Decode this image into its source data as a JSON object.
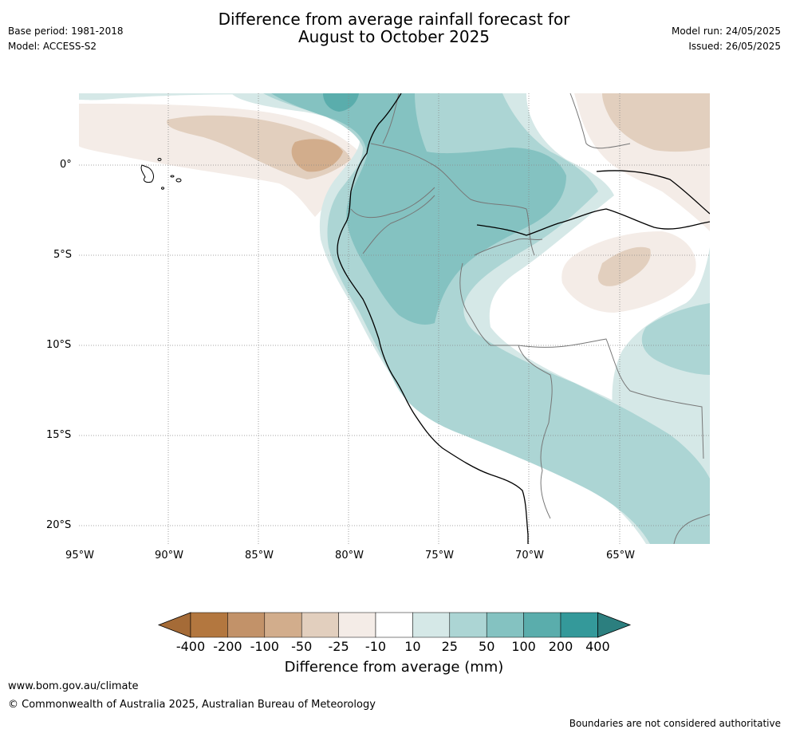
{
  "header": {
    "title_line1": "Difference from average rainfall forecast for",
    "title_line2": "August to October 2025",
    "base_period": "Base period: 1981-2018",
    "model": "Model: ACCESS-S2",
    "model_run": "Model run: 24/05/2025",
    "issued": "Issued: 26/05/2025"
  },
  "map": {
    "lat_labels": [
      "0°",
      "5°S",
      "10°S",
      "15°S",
      "20°S"
    ],
    "lon_labels": [
      "95°W",
      "90°W",
      "85°W",
      "80°W",
      "75°W",
      "70°W",
      "65°W"
    ]
  },
  "colorbar": {
    "title": "Difference from average (mm)",
    "labels": [
      "-400",
      "-200",
      "-100",
      "-50",
      "-25",
      "-10",
      "10",
      "25",
      "50",
      "100",
      "200",
      "400"
    ],
    "colors": [
      "#a56b37",
      "#b3773f",
      "#c29269",
      "#d2ad8c",
      "#e2cfbe",
      "#f4ece7",
      "#ffffff",
      "#d5e8e7",
      "#acd5d4",
      "#84c2c1",
      "#5aadac",
      "#34999a",
      "#2c7f7f"
    ]
  },
  "footer": {
    "url": "www.bom.gov.au/climate",
    "copyright": "© Commonwealth of Australia 2025, Australian Bureau of Meteorology",
    "disclaimer": "Boundaries are not considered authoritative"
  }
}
